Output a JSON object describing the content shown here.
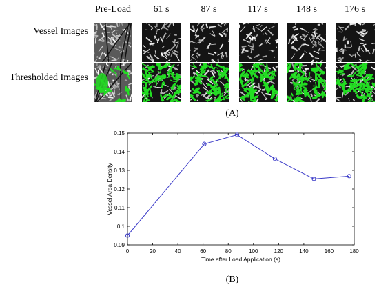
{
  "panel_a": {
    "columns": [
      "Pre-Load",
      "61 s",
      "87 s",
      "117 s",
      "148 s",
      "176 s"
    ],
    "rows": [
      "Vessel Images",
      "Thresholded Images"
    ],
    "label": "(A)"
  },
  "panel_b": {
    "label": "(B)"
  },
  "colors": {
    "series": "#3a3ac8",
    "threshold": "#22dd22"
  },
  "chart_data": {
    "type": "line",
    "x": [
      0,
      61,
      87,
      117,
      148,
      176
    ],
    "y": [
      0.095,
      0.1442,
      0.1491,
      0.1362,
      0.1254,
      0.1269
    ],
    "xlabel": "Time after Load Application (s)",
    "ylabel": "Vessel Area Density",
    "xlim": [
      0,
      180
    ],
    "ylim": [
      0.09,
      0.15
    ],
    "xticks": [
      0,
      20,
      40,
      60,
      80,
      100,
      120,
      140,
      160,
      180
    ],
    "yticks": [
      0.09,
      0.1,
      0.11,
      0.12,
      0.13,
      0.14,
      0.15
    ],
    "xtick_labels": [
      "0",
      "20",
      "40",
      "60",
      "80",
      "100",
      "120",
      "140",
      "160",
      "180"
    ],
    "ytick_labels": [
      "0.09",
      "0.1",
      "0.11",
      "0.12",
      "0.13",
      "0.14",
      "0.15"
    ],
    "marker": "circle",
    "grid": false,
    "legend": false
  }
}
